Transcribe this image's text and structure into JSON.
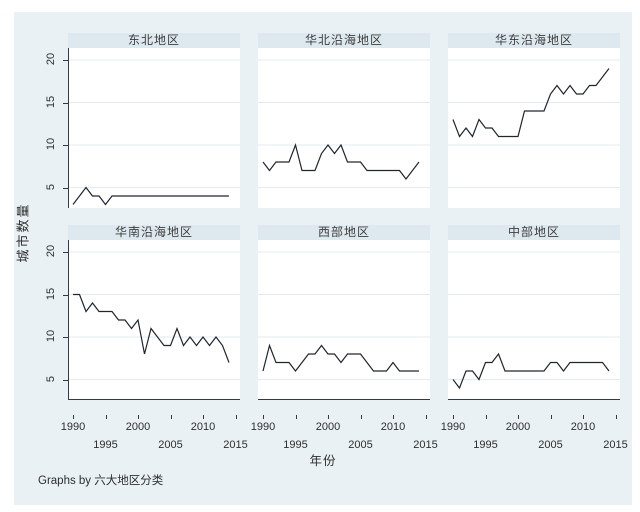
{
  "axes": {
    "y_ticks": [
      5,
      10,
      15,
      20
    ],
    "x_ticks": [
      1990,
      1995,
      2000,
      2005,
      2010,
      2015
    ]
  },
  "colors": {
    "region_bg": "#eaf1f5",
    "band_bg": "#dde9ef",
    "plot_bg": "#ffffff",
    "grid": "#e2ecf0",
    "axis": "#333a40",
    "line": "#20262e",
    "text": "#2e2e2e"
  },
  "chart_data": {
    "type": "line",
    "layout": "2x3 small multiples (Stata graph by)",
    "xlabel": "年份",
    "ylabel": "城市数量",
    "note": "Graphs by 六大地区分类",
    "x": [
      1990,
      1991,
      1992,
      1993,
      1994,
      1995,
      1996,
      1997,
      1998,
      1999,
      2000,
      2001,
      2002,
      2003,
      2004,
      2005,
      2006,
      2007,
      2008,
      2009,
      2010,
      2011,
      2012,
      2013,
      2014
    ],
    "xlim": [
      1989,
      2016
    ],
    "ylim": [
      2.5,
      21.5
    ],
    "grid": "horizontal only",
    "legend": "none",
    "panels": [
      {
        "title": "东北地区",
        "values": [
          3,
          4,
          5,
          4,
          4,
          3,
          4,
          4,
          4,
          4,
          4,
          4,
          4,
          4,
          4,
          4,
          4,
          4,
          4,
          4,
          4,
          4,
          4,
          4,
          4
        ]
      },
      {
        "title": "华北沿海地区",
        "values": [
          8,
          7,
          8,
          8,
          8,
          10,
          7,
          7,
          7,
          9,
          10,
          9,
          10,
          8,
          8,
          8,
          7,
          7,
          7,
          7,
          7,
          7,
          6,
          7,
          8
        ]
      },
      {
        "title": "华东沿海地区",
        "values": [
          13,
          11,
          12,
          11,
          13,
          12,
          12,
          11,
          11,
          11,
          11,
          14,
          14,
          14,
          14,
          16,
          17,
          16,
          17,
          16,
          16,
          17,
          17,
          18,
          19
        ]
      },
      {
        "title": "华南沿海地区",
        "values": [
          15,
          15,
          13,
          14,
          13,
          13,
          13,
          12,
          12,
          11,
          12,
          8,
          11,
          10,
          9,
          9,
          11,
          9,
          10,
          9,
          10,
          9,
          10,
          9,
          7
        ]
      },
      {
        "title": "西部地区",
        "values": [
          6,
          9,
          7,
          7,
          7,
          6,
          7,
          8,
          8,
          9,
          8,
          8,
          7,
          8,
          8,
          8,
          7,
          6,
          6,
          6,
          7,
          6,
          6,
          6,
          6
        ]
      },
      {
        "title": "中部地区",
        "values": [
          5,
          4,
          6,
          6,
          5,
          7,
          7,
          8,
          6,
          6,
          6,
          6,
          6,
          6,
          6,
          7,
          7,
          6,
          7,
          7,
          7,
          7,
          7,
          7,
          6
        ]
      }
    ]
  }
}
